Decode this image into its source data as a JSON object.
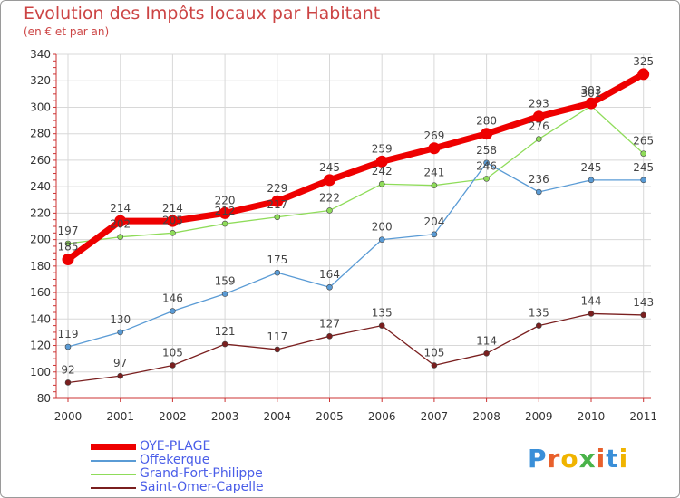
{
  "title": "Evolution des Impôts locaux par Habitant",
  "subtitle": "(en € et par an)",
  "logo": "Proxiti",
  "chart_data": {
    "type": "line",
    "x": [
      "2000",
      "2001",
      "2002",
      "2003",
      "2004",
      "2005",
      "2006",
      "2007",
      "2008",
      "2009",
      "2010",
      "2011"
    ],
    "ylim": [
      80,
      340
    ],
    "yticks": [
      80,
      100,
      120,
      140,
      160,
      180,
      200,
      220,
      240,
      260,
      280,
      300,
      320,
      340
    ],
    "grid": true,
    "legend_position": "bottom-left",
    "series": [
      {
        "name": "Saint-Omer-Capelle",
        "color": "#7a1f1f",
        "values": [
          92,
          97,
          105,
          121,
          117,
          127,
          135,
          105,
          114,
          135,
          144,
          143
        ]
      },
      {
        "name": "Grand-Fort-Philippe",
        "color": "#8fdc5a",
        "values": [
          197,
          202,
          205,
          212,
          217,
          222,
          242,
          241,
          246,
          276,
          301,
          265
        ]
      },
      {
        "name": "Offekerque",
        "color": "#5a9bd5",
        "values": [
          119,
          130,
          146,
          159,
          175,
          164,
          200,
          204,
          258,
          236,
          245,
          245
        ]
      },
      {
        "name": "OYE-PLAGE",
        "color": "#ee0000",
        "values": [
          185,
          214,
          214,
          220,
          229,
          245,
          259,
          269,
          280,
          293,
          303,
          325
        ]
      }
    ],
    "legend_order": [
      "OYE-PLAGE",
      "Offekerque",
      "Grand-Fort-Philippe",
      "Saint-Omer-Capelle"
    ]
  }
}
